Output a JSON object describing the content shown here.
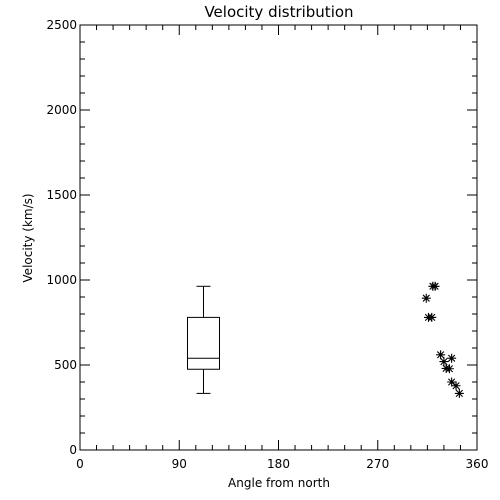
{
  "chart_data": {
    "type": "box-and-scatter",
    "title": "Velocity distribution",
    "xlabel": "Angle from north",
    "ylabel": "Velocity (km/s)",
    "xlim": [
      0,
      360
    ],
    "ylim": [
      0,
      2500
    ],
    "x_ticks": [
      0,
      90,
      180,
      270,
      360
    ],
    "y_ticks": [
      0,
      500,
      1000,
      1500,
      2000,
      2500
    ],
    "x_minor_step": 15,
    "y_minor_step": 100,
    "grid": false,
    "boxplot": {
      "x": 112,
      "min": 333,
      "q1": 475,
      "median": 540,
      "q3": 780,
      "max": 963
    },
    "points": [
      {
        "x": 314,
        "y": 893
      },
      {
        "x": 316,
        "y": 780
      },
      {
        "x": 319,
        "y": 780
      },
      {
        "x": 320,
        "y": 963
      },
      {
        "x": 322,
        "y": 963
      },
      {
        "x": 327,
        "y": 560
      },
      {
        "x": 330,
        "y": 520
      },
      {
        "x": 332,
        "y": 480
      },
      {
        "x": 335,
        "y": 478
      },
      {
        "x": 337,
        "y": 540
      },
      {
        "x": 337,
        "y": 400
      },
      {
        "x": 341,
        "y": 378
      },
      {
        "x": 344,
        "y": 333
      }
    ]
  }
}
